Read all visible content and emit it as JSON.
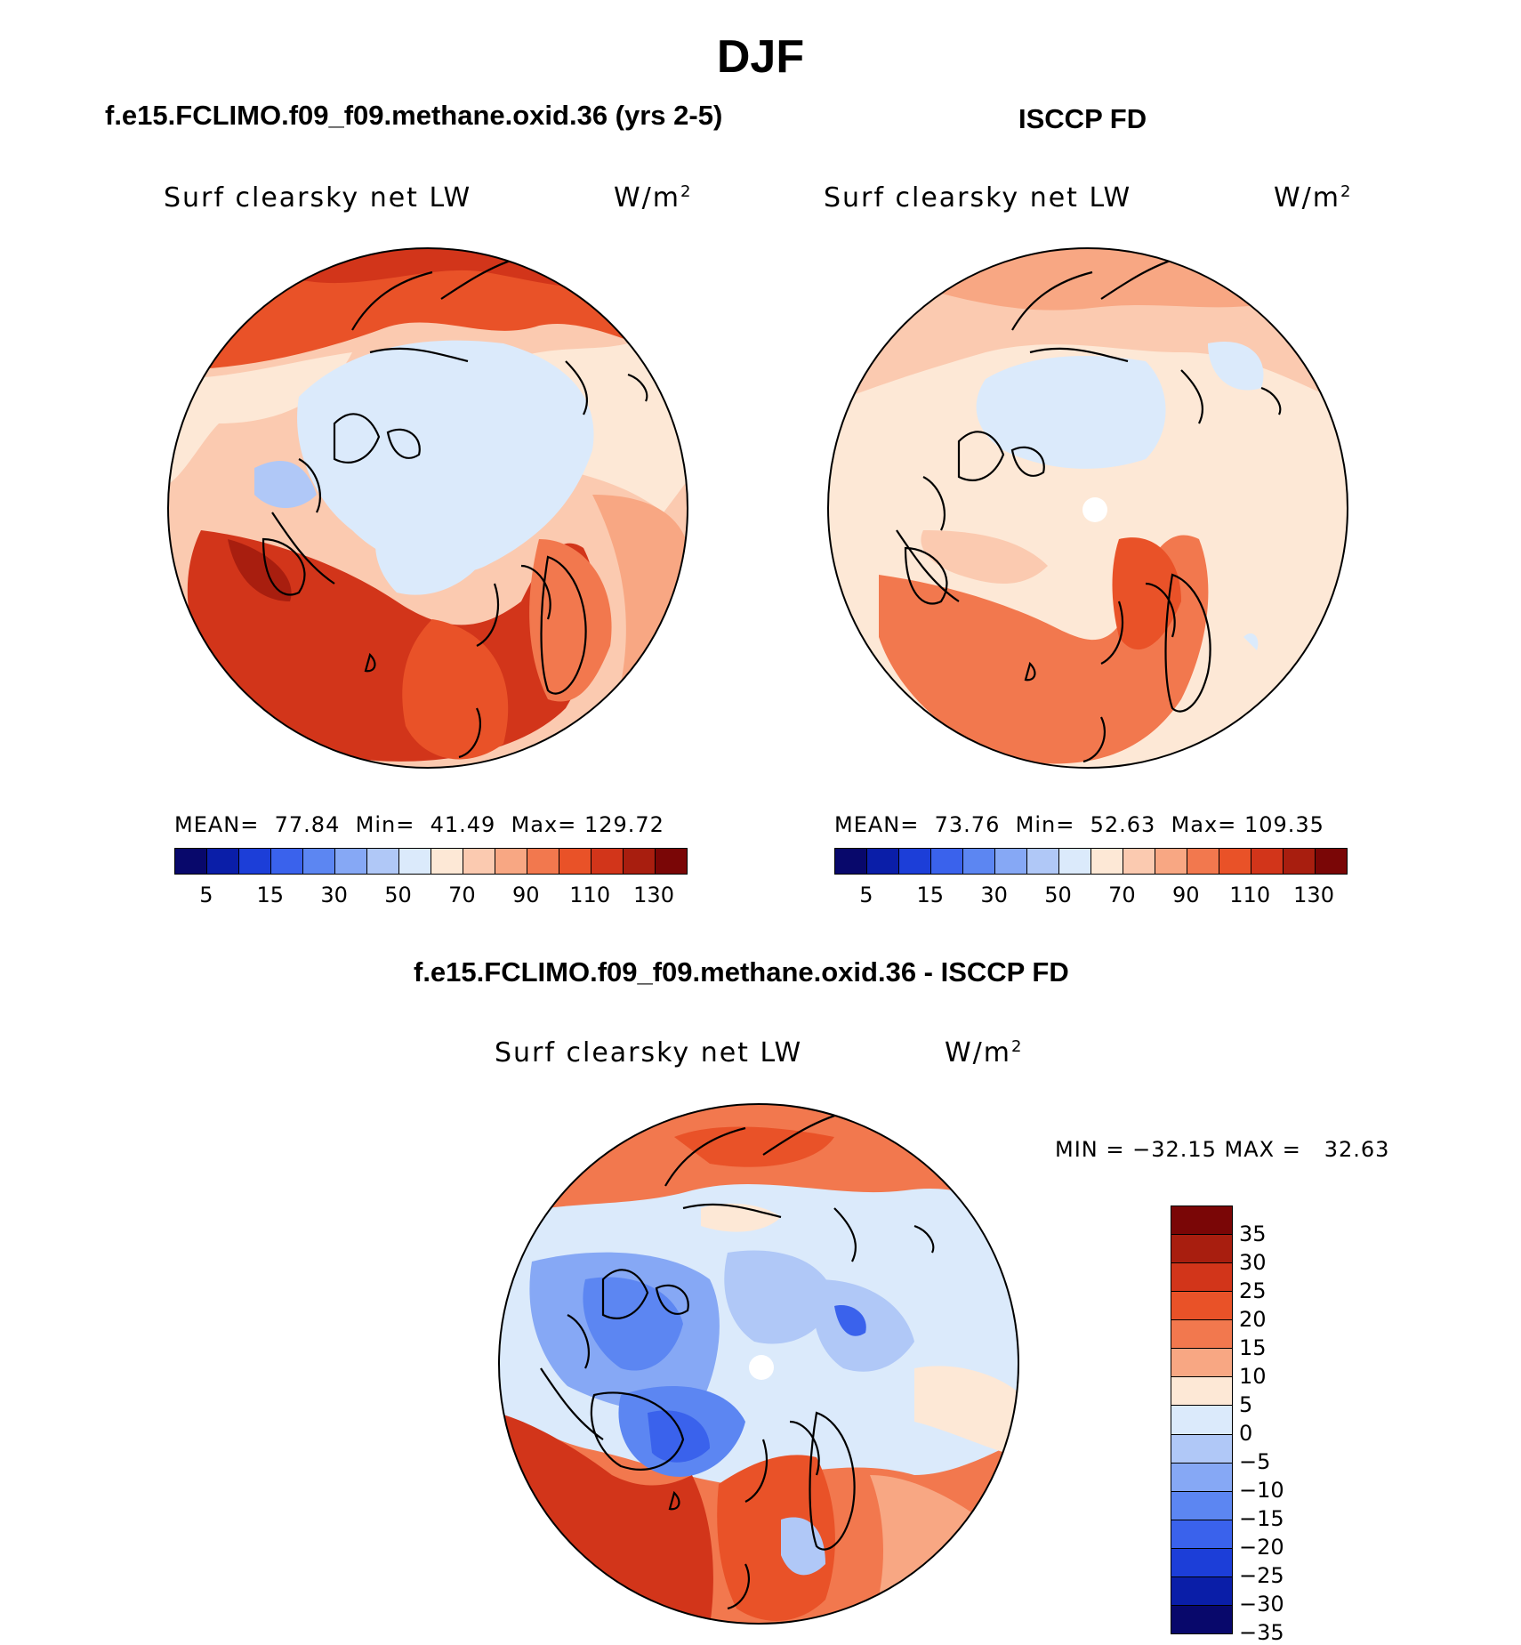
{
  "title": "DJF",
  "panels": [
    {
      "case": "f.e15.FCLIMO.f09_f09.methane.oxid.36 (yrs 2-5)",
      "field": "Surf clearsky net LW",
      "units": "W/m",
      "units_exp": "2",
      "mean_label": "MEAN=",
      "mean": "77.84",
      "min_label": "Min=",
      "min": "41.49",
      "max_label": "Max=",
      "max": "129.72"
    },
    {
      "case": "ISCCP FD",
      "field": "Surf clearsky net LW",
      "units": "W/m",
      "units_exp": "2",
      "mean_label": "MEAN=",
      "mean": "73.76",
      "min_label": "Min=",
      "min": "52.63",
      "max_label": "Max=",
      "max": "109.35"
    }
  ],
  "diff_panel": {
    "case": "f.e15.FCLIMO.f09_f09.methane.oxid.36 - ISCCP FD",
    "field": "Surf clearsky net LW",
    "units": "W/m",
    "units_exp": "2",
    "stats": "MIN = −32.15 MAX =   32.63"
  },
  "colorbar_abs": {
    "colors": [
      "#08086b",
      "#0a1ea8",
      "#1c3ed8",
      "#3a62ec",
      "#5c86f2",
      "#86a8f5",
      "#b0c8f7",
      "#dbeafb",
      "#fde8d6",
      "#fbcab0",
      "#f8a783",
      "#f2784e",
      "#e95228",
      "#d2351a",
      "#a81e0f",
      "#7a0606"
    ],
    "labels": [
      "5",
      "15",
      "30",
      "50",
      "70",
      "90",
      "110",
      "130"
    ]
  },
  "colorbar_diff": {
    "colors": [
      "#7a0606",
      "#a81e0f",
      "#d2351a",
      "#e95228",
      "#f2784e",
      "#f8a783",
      "#fde8d6",
      "#dbeafb",
      "#b0c8f7",
      "#86a8f5",
      "#5c86f2",
      "#3a62ec",
      "#1c3ed8",
      "#0a1ea8",
      "#08086b"
    ],
    "labels": [
      "35",
      "30",
      "25",
      "20",
      "15",
      "10",
      "5",
      "0",
      "−5",
      "−10",
      "−15",
      "−20",
      "−25",
      "−30",
      "−35"
    ]
  }
}
